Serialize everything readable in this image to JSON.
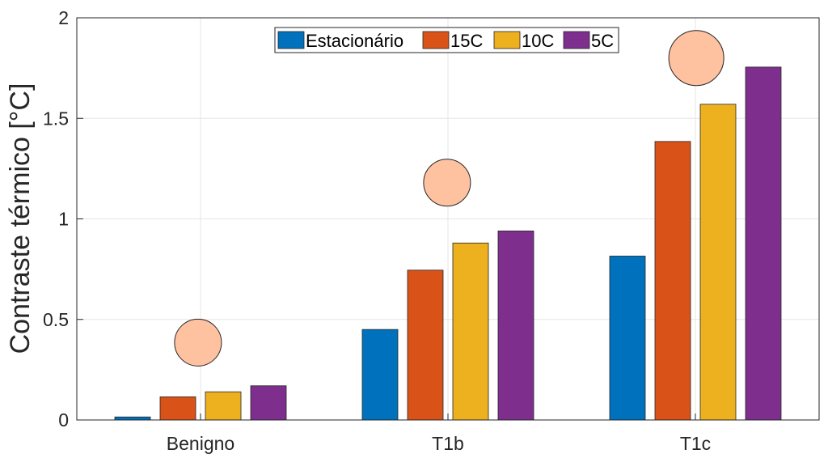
{
  "chart_data": {
    "type": "bar",
    "title": "",
    "xlabel": "",
    "ylabel": "Contraste térmico [°C]",
    "ylim": [
      0,
      2
    ],
    "yticks": [
      0,
      0.5,
      1,
      1.5,
      2
    ],
    "ytick_labels": [
      "0",
      "0.5",
      "1",
      "1.5",
      "2"
    ],
    "grid": true,
    "legend_placement": "top-center",
    "categories": [
      "Benigno",
      "T1b",
      "T1c"
    ],
    "series": [
      {
        "name": "Estacionário",
        "color": "#0072BD",
        "values": [
          0.015,
          0.45,
          0.815
        ]
      },
      {
        "name": "15C",
        "color": "#D95319",
        "values": [
          0.115,
          0.745,
          1.385
        ]
      },
      {
        "name": "10C",
        "color": "#EDB120",
        "values": [
          0.14,
          0.88,
          1.57
        ]
      },
      {
        "name": "5C",
        "color": "#7E2F8E",
        "values": [
          0.17,
          0.94,
          1.755
        ]
      }
    ],
    "markers": {
      "shape": "circle",
      "color": "#FFC2A0",
      "values": [
        0.385,
        1.18,
        1.8
      ]
    }
  }
}
